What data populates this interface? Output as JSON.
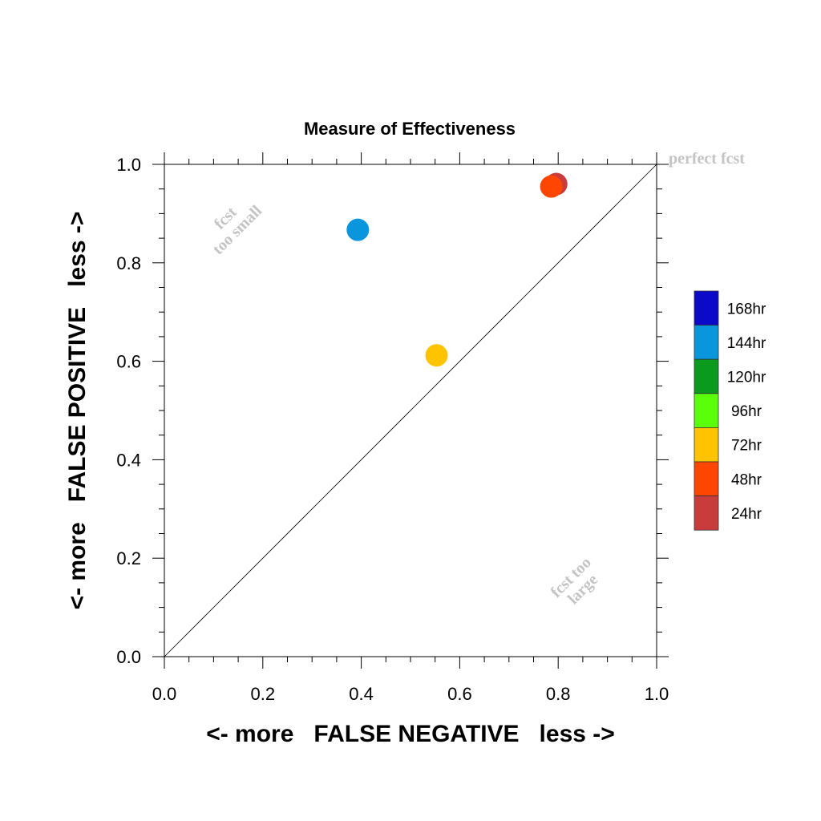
{
  "chart_data": {
    "type": "scatter",
    "title": "Measure of Effectiveness",
    "xlabel": "<- more   FALSE NEGATIVE   less ->",
    "ylabel": "<- more   FALSE POSITIVE   less ->",
    "xlim": [
      0.0,
      1.0
    ],
    "ylim": [
      0.0,
      1.0
    ],
    "xticks": [
      "0.0",
      "0.2",
      "0.4",
      "0.6",
      "0.8",
      "1.0"
    ],
    "yticks": [
      "0.0",
      "0.2",
      "0.4",
      "0.6",
      "0.8",
      "1.0"
    ],
    "grid": false,
    "diagonal_line": true,
    "annotations": {
      "perfect": "perfect fcst",
      "small_line1": "fcst",
      "small_line2": "too small",
      "large_line1": "fcst too",
      "large_line2": "large"
    },
    "legend_position": "right",
    "legend": [
      {
        "label": "168hr",
        "color": "#0a0ac8"
      },
      {
        "label": "144hr",
        "color": "#0a96dc"
      },
      {
        "label": "120hr",
        "color": "#0a9b1e"
      },
      {
        "label": "96hr",
        "color": "#5aff0a"
      },
      {
        "label": "72hr",
        "color": "#ffc300"
      },
      {
        "label": "48hr",
        "color": "#ff4600"
      },
      {
        "label": "24hr",
        "color": "#c83c3c"
      }
    ],
    "points": [
      {
        "series": "144hr",
        "x": 0.393,
        "y": 0.867,
        "color": "#0a96dc"
      },
      {
        "series": "72hr",
        "x": 0.553,
        "y": 0.612,
        "color": "#ffc300"
      },
      {
        "series": "24hr",
        "x": 0.796,
        "y": 0.96,
        "color": "#c83c3c"
      },
      {
        "series": "48hr",
        "x": 0.786,
        "y": 0.955,
        "color": "#ff4600"
      }
    ]
  }
}
